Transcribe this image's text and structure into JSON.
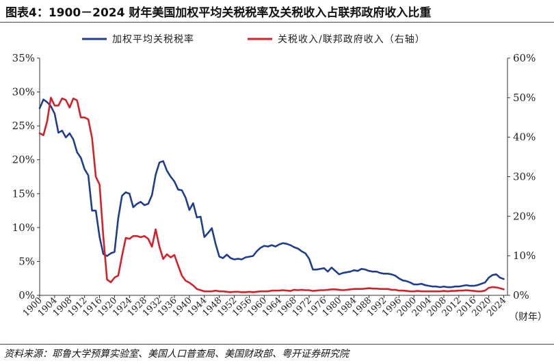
{
  "title": "图表4：1900－2024 财年美国加权平均关税税率及关税收入占联邦政府收入比重",
  "source": "资料来源：耶鲁大学预算实验室、美国人口普查局、美国财政部、粤开证券研究院",
  "chart_data": {
    "type": "line",
    "title": "图表4：1900－2024 财年美国加权平均关税税率及关税收入占联邦政府收入比重",
    "xlabel": "（财年）",
    "ylabel": "",
    "xlim": [
      1900,
      2025
    ],
    "ylim_left": [
      0,
      35
    ],
    "ylim_right": [
      0,
      60
    ],
    "y_left_ticks": [
      "0%",
      "5%",
      "10%",
      "15%",
      "20%",
      "25%",
      "30%",
      "35%"
    ],
    "y_right_ticks": [
      "0%",
      "10%",
      "20%",
      "30%",
      "40%",
      "50%",
      "60%"
    ],
    "x_ticks": [
      "1900",
      "1904",
      "1908",
      "1912",
      "1916",
      "1920",
      "1924",
      "1928",
      "1932",
      "1936",
      "1940",
      "1944",
      "1948",
      "1952",
      "1956",
      "1960",
      "1964",
      "1968",
      "1972",
      "1976",
      "1980",
      "1984",
      "1988",
      "1992",
      "1996",
      "2000",
      "2004",
      "2008",
      "2012",
      "2016",
      "2020",
      "2024"
    ],
    "grid": false,
    "legend_position": "top",
    "series": [
      {
        "name": "加权平均关税税率",
        "axis": "left",
        "color": "#1f3d8f",
        "x": [
          1900,
          1901,
          1902,
          1903,
          1904,
          1905,
          1906,
          1907,
          1908,
          1909,
          1910,
          1911,
          1912,
          1913,
          1914,
          1915,
          1916,
          1917,
          1918,
          1919,
          1920,
          1921,
          1922,
          1923,
          1924,
          1925,
          1926,
          1927,
          1928,
          1929,
          1930,
          1931,
          1932,
          1933,
          1934,
          1935,
          1936,
          1937,
          1938,
          1939,
          1940,
          1941,
          1942,
          1943,
          1944,
          1945,
          1946,
          1947,
          1948,
          1949,
          1950,
          1951,
          1952,
          1953,
          1954,
          1955,
          1956,
          1957,
          1958,
          1959,
          1960,
          1961,
          1962,
          1963,
          1964,
          1965,
          1966,
          1967,
          1968,
          1969,
          1970,
          1971,
          1972,
          1973,
          1974,
          1975,
          1976,
          1977,
          1978,
          1979,
          1980,
          1981,
          1982,
          1983,
          1984,
          1985,
          1986,
          1987,
          1988,
          1989,
          1990,
          1991,
          1992,
          1993,
          1994,
          1995,
          1996,
          1997,
          1998,
          1999,
          2000,
          2001,
          2002,
          2003,
          2004,
          2005,
          2006,
          2007,
          2008,
          2009,
          2010,
          2011,
          2012,
          2013,
          2014,
          2015,
          2016,
          2017,
          2018,
          2019,
          2020,
          2021,
          2022,
          2023,
          2024
        ],
        "values": [
          27.6,
          28.9,
          28.5,
          27.9,
          26.8,
          24.0,
          24.3,
          23.3,
          23.9,
          23.0,
          21.1,
          20.3,
          18.6,
          17.7,
          12.5,
          12.5,
          8.6,
          6.1,
          5.8,
          6.2,
          6.4,
          11.4,
          14.7,
          15.2,
          15.0,
          13.0,
          13.5,
          13.8,
          13.3,
          13.5,
          14.8,
          17.8,
          19.6,
          19.8,
          18.4,
          17.5,
          16.8,
          15.6,
          15.5,
          14.4,
          12.6,
          13.6,
          11.5,
          11.6,
          8.6,
          9.2,
          9.9,
          7.6,
          5.7,
          5.5,
          6.0,
          5.5,
          5.3,
          5.4,
          5.3,
          5.6,
          5.7,
          5.8,
          6.5,
          7.0,
          7.3,
          7.2,
          7.4,
          7.2,
          7.5,
          7.7,
          7.6,
          7.4,
          7.1,
          6.9,
          6.5,
          6.2,
          5.4,
          3.8,
          3.8,
          3.9,
          4.0,
          3.5,
          4.1,
          3.6,
          3.1,
          3.3,
          3.4,
          3.5,
          3.7,
          3.6,
          3.9,
          3.8,
          3.6,
          3.5,
          3.5,
          3.3,
          3.2,
          3.2,
          3.1,
          2.9,
          2.5,
          2.2,
          2.1,
          1.9,
          1.6,
          1.6,
          1.7,
          1.5,
          1.4,
          1.3,
          1.3,
          1.2,
          1.3,
          1.2,
          1.2,
          1.3,
          1.3,
          1.4,
          1.5,
          1.4,
          1.4,
          1.5,
          1.7,
          1.9,
          2.6,
          3.0,
          3.1,
          2.6,
          2.4
        ]
      },
      {
        "name": "关税收入/联邦政府收入（右轴）",
        "axis": "right",
        "color": "#d42028",
        "x": [
          1900,
          1901,
          1902,
          1903,
          1904,
          1905,
          1906,
          1907,
          1908,
          1909,
          1910,
          1911,
          1912,
          1913,
          1914,
          1915,
          1916,
          1917,
          1918,
          1919,
          1920,
          1921,
          1922,
          1923,
          1924,
          1925,
          1926,
          1927,
          1928,
          1929,
          1930,
          1931,
          1932,
          1933,
          1934,
          1935,
          1936,
          1937,
          1938,
          1939,
          1940,
          1941,
          1942,
          1943,
          1944,
          1945,
          1946,
          1947,
          1948,
          1949,
          1950,
          1951,
          1952,
          1953,
          1954,
          1955,
          1956,
          1957,
          1958,
          1959,
          1960,
          1961,
          1962,
          1963,
          1964,
          1965,
          1966,
          1967,
          1968,
          1969,
          1970,
          1971,
          1972,
          1973,
          1974,
          1975,
          1976,
          1977,
          1978,
          1979,
          1980,
          1981,
          1982,
          1983,
          1984,
          1985,
          1986,
          1987,
          1988,
          1989,
          1990,
          1991,
          1992,
          1993,
          1994,
          1995,
          1996,
          1997,
          1998,
          1999,
          2000,
          2001,
          2002,
          2003,
          2004,
          2005,
          2006,
          2007,
          2008,
          2009,
          2010,
          2011,
          2012,
          2013,
          2014,
          2015,
          2016,
          2017,
          2018,
          2019,
          2020,
          2021,
          2022,
          2023,
          2024
        ],
        "values": [
          41,
          40.5,
          44,
          50,
          48,
          48,
          49.8,
          49.4,
          47.5,
          49.8,
          49.3,
          45,
          45,
          44.5,
          39.8,
          30,
          28,
          15,
          4,
          3.3,
          4.5,
          5,
          10,
          14.5,
          14.3,
          15,
          15,
          14.7,
          15,
          14.3,
          12.3,
          16.7,
          12.3,
          9.2,
          10.4,
          9.6,
          10.2,
          7.5,
          5,
          3.7,
          3.2,
          2.5,
          1.6,
          1.3,
          1,
          1,
          1,
          1.2,
          1,
          1,
          0.9,
          0.8,
          0.9,
          0.9,
          0.8,
          0.8,
          0.9,
          0.8,
          0.9,
          1,
          1,
          1,
          1.2,
          1.2,
          1.2,
          1.3,
          1.2,
          1.1,
          1.4,
          1.3,
          1.4,
          1.3,
          1.3,
          1.1,
          1.2,
          1.3,
          1.3,
          1.4,
          1.5,
          1.5,
          1.4,
          1.3,
          1.4,
          1.5,
          1.6,
          1.6,
          1.6,
          1.7,
          1.8,
          1.7,
          1.7,
          1.6,
          1.6,
          1.6,
          1.4,
          1.4,
          1.2,
          1.2,
          1.1,
          1.0,
          1.0,
          1.1,
          1.0,
          1.0,
          1.0,
          1.0,
          1.0,
          1.0,
          1.1,
          1.0,
          1.1,
          1.1,
          1.2,
          1.2,
          1.3,
          1.2,
          1.1,
          1.0,
          1.0,
          1.2,
          1.9,
          2.1,
          2.0,
          1.8,
          1.5
        ]
      }
    ]
  }
}
